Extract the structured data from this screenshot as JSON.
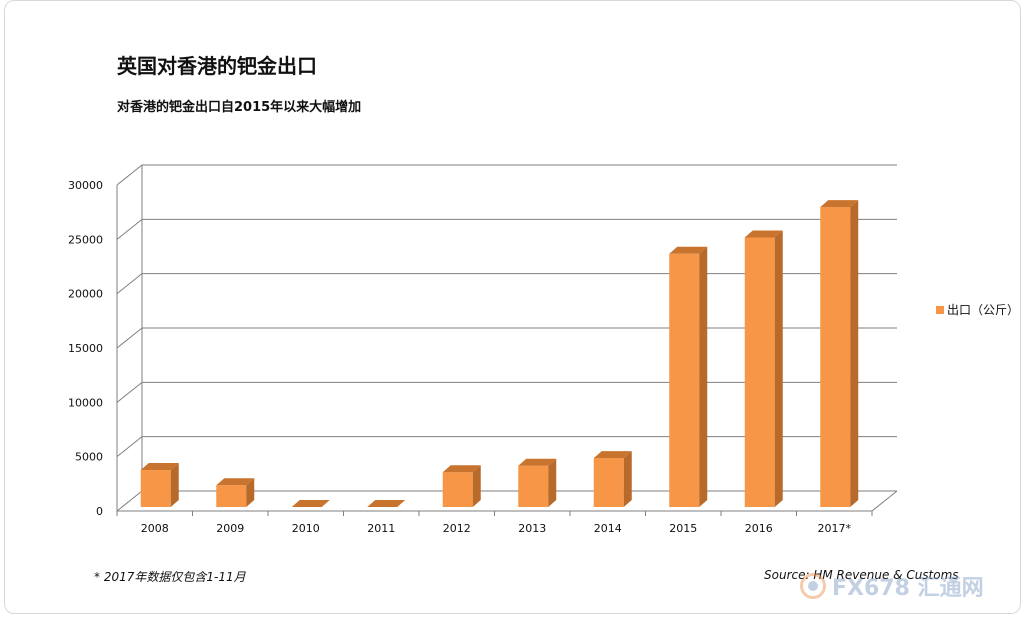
{
  "chart_data": {
    "type": "bar",
    "title": "英国对香港的钯金出口",
    "subtitle": "对香港的钯金出口自2015年以来大幅增加",
    "categories": [
      "2008",
      "2009",
      "2010",
      "2011",
      "2012",
      "2013",
      "2014",
      "2015",
      "2016",
      "2017*"
    ],
    "series": [
      {
        "name": "出口（公斤）",
        "values": [
          3400,
          2000,
          0,
          0,
          3200,
          3800,
          4500,
          23300,
          24800,
          27600
        ]
      }
    ],
    "yticks": [
      "0",
      "5000",
      "10000",
      "15000",
      "20000",
      "25000",
      "30000"
    ],
    "ylim": [
      0,
      30000
    ],
    "grid": true,
    "legend_position": "right",
    "bar_color": "#f79646",
    "footnote": "*  2017年数据仅包含1-11月",
    "source": "Source:  HM Revenue & Customs"
  },
  "watermark": {
    "text": "FX678 汇通网"
  }
}
